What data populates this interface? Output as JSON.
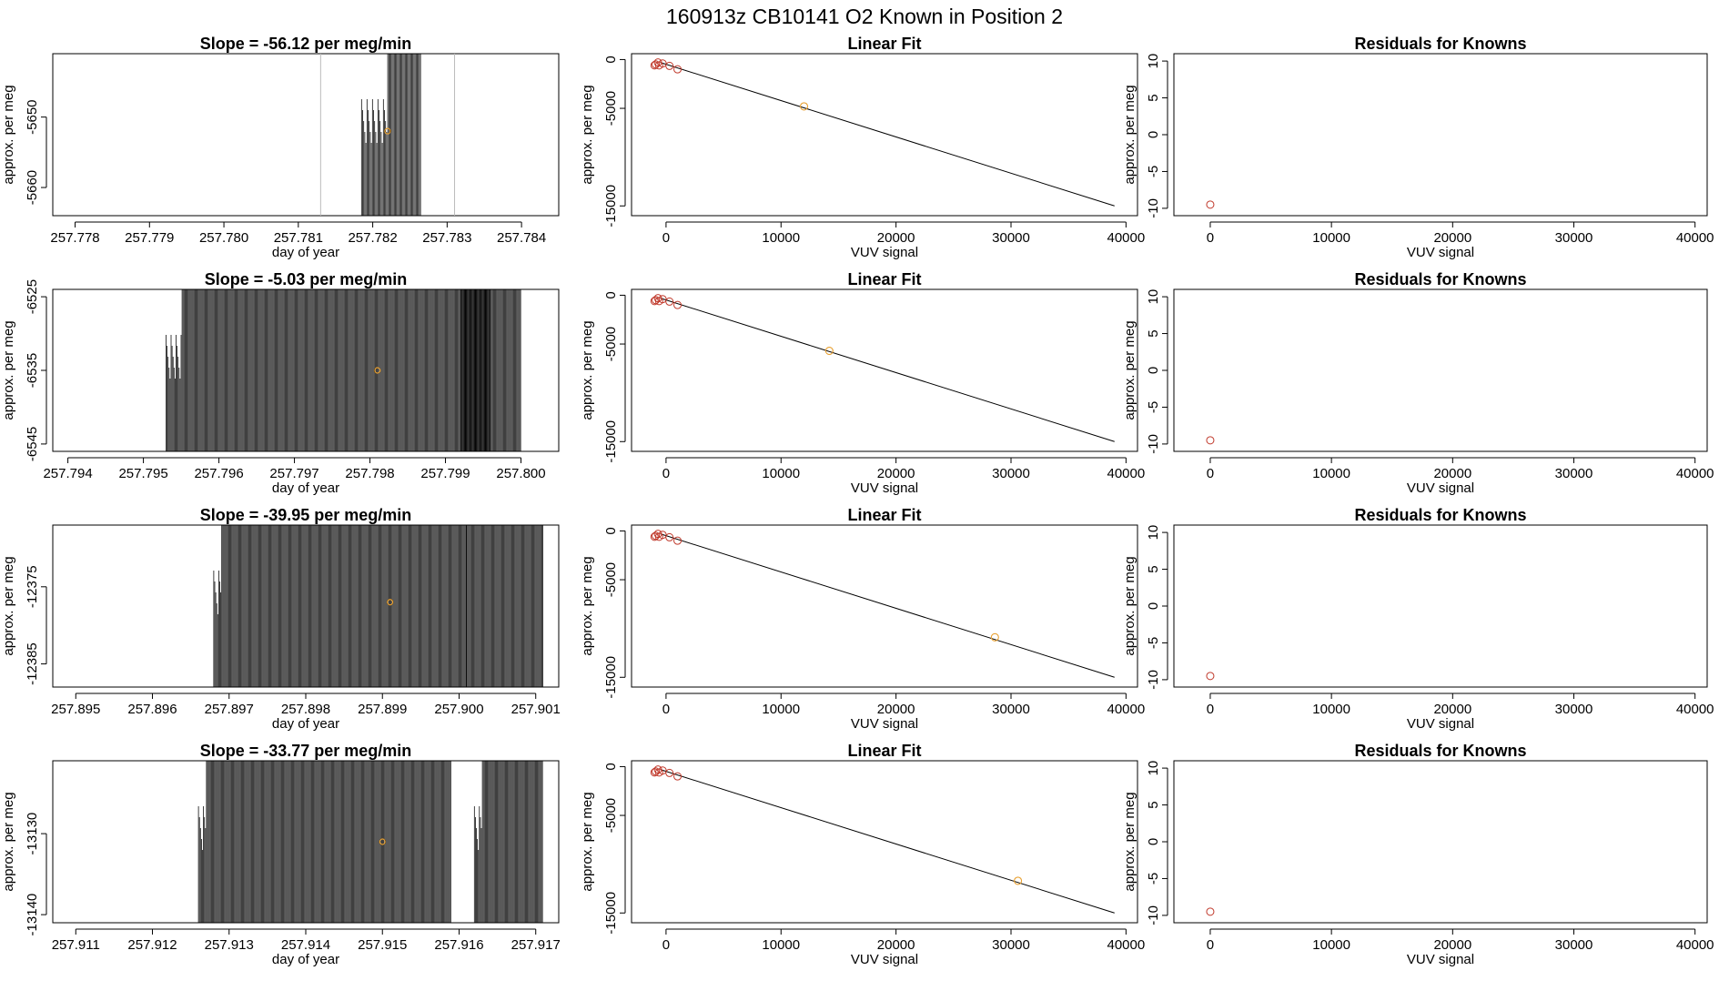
{
  "figure": {
    "title": "160913z      CB10141    O2 Known in Position  2"
  },
  "chart_data": [
    {
      "type": "line",
      "name": "raw-1",
      "title": "Slope =  -56.12  per meg/min",
      "xlabel": "day of year",
      "ylabel": "approx. per meg",
      "xlim": [
        257.7777,
        257.7845
      ],
      "ylim": [
        -5664,
        -5641
      ],
      "xticks": [
        "257.778",
        "257.779",
        "257.780",
        "257.781",
        "257.782",
        "257.783",
        "257.784"
      ],
      "yticks": [
        "-5650",
        "-5660"
      ],
      "marker_x": 257.7822,
      "marker_y": -5652,
      "window": [
        257.7813,
        257.7831
      ],
      "spans": [
        [
          257.78185,
          257.78265,
          257.7822,
          257.78265,
          1.2
        ]
      ]
    },
    {
      "type": "line",
      "name": "raw-2",
      "title": "Slope =  -5.03  per meg/min",
      "xlabel": "day of year",
      "ylabel": "approx. per meg",
      "xlim": [
        257.7938,
        257.8005
      ],
      "ylim": [
        -6546,
        -6524
      ],
      "xticks": [
        "257.794",
        "257.795",
        "257.796",
        "257.797",
        "257.798",
        "257.799",
        "257.800"
      ],
      "yticks": [
        "-6525",
        "-6535",
        "-6545"
      ],
      "marker_x": 257.7981,
      "marker_y": -6535,
      "spans": [
        [
          257.7953,
          257.7996,
          257.7955,
          257.7996,
          1.1
        ],
        [
          257.7992,
          257.8,
          257.7992,
          257.8,
          1.1
        ]
      ]
    },
    {
      "type": "line",
      "name": "raw-3",
      "title": "Slope =  -39.95  per meg/min",
      "xlabel": "day of year",
      "ylabel": "approx. per meg",
      "xlim": [
        257.8947,
        257.9013
      ],
      "ylim": [
        -12388,
        -12367
      ],
      "xticks": [
        "257.895",
        "257.896",
        "257.897",
        "257.898",
        "257.899",
        "257.900",
        "257.901"
      ],
      "yticks": [
        "-12375",
        "-12385"
      ],
      "marker_x": 257.8991,
      "marker_y": -12377,
      "spans": [
        [
          257.8968,
          257.9001,
          257.8969,
          257.9001,
          1.1
        ],
        [
          257.9001,
          257.9011,
          257.9001,
          257.9011,
          1.1
        ]
      ]
    },
    {
      "type": "line",
      "name": "raw-4",
      "title": "Slope =  -33.77  per meg/min",
      "xlabel": "day of year",
      "ylabel": "approx. per meg",
      "xlim": [
        257.9107,
        257.9173
      ],
      "ylim": [
        -13141,
        -13121
      ],
      "xticks": [
        "257.911",
        "257.912",
        "257.913",
        "257.914",
        "257.915",
        "257.916",
        "257.917"
      ],
      "yticks": [
        "-13130",
        "-13140"
      ],
      "marker_x": 257.915,
      "marker_y": -13131,
      "spans": [
        [
          257.9126,
          257.9159,
          257.9127,
          257.9159,
          1.1
        ],
        [
          257.9162,
          257.9171,
          257.9163,
          257.9171,
          1.1
        ]
      ]
    },
    {
      "type": "scatter",
      "name": "fit-1",
      "title": "Linear Fit",
      "xlabel": "VUV signal",
      "ylabel": "approx. per meg",
      "xlim": [
        -3000,
        41000
      ],
      "ylim": [
        -16000,
        600
      ],
      "xticks": [
        "0",
        "10000",
        "20000",
        "30000",
        "40000"
      ],
      "yticks": [
        "0",
        "-5000",
        "-15000"
      ],
      "line": [
        [
          -500,
          -300
        ],
        [
          39000,
          -15000
        ]
      ],
      "points": [
        [
          -700,
          -300
        ],
        [
          -300,
          -400
        ],
        [
          -600,
          -600
        ],
        [
          -900,
          -500
        ],
        [
          300,
          -650
        ],
        [
          1000,
          -1000
        ],
        [
          -1000,
          -600
        ]
      ],
      "unknown": [
        12000,
        -4800
      ]
    },
    {
      "type": "scatter",
      "name": "fit-2",
      "title": "Linear Fit",
      "xlabel": "VUV signal",
      "ylabel": "approx. per meg",
      "xlim": [
        -3000,
        41000
      ],
      "ylim": [
        -16000,
        600
      ],
      "xticks": [
        "0",
        "10000",
        "20000",
        "30000",
        "40000"
      ],
      "yticks": [
        "0",
        "-5000",
        "-15000"
      ],
      "line": [
        [
          -500,
          -300
        ],
        [
          39000,
          -15000
        ]
      ],
      "points": [
        [
          -700,
          -300
        ],
        [
          -300,
          -400
        ],
        [
          -600,
          -600
        ],
        [
          -900,
          -500
        ],
        [
          300,
          -650
        ],
        [
          1000,
          -1000
        ],
        [
          -1000,
          -600
        ]
      ],
      "unknown": [
        14200,
        -5700
      ]
    },
    {
      "type": "scatter",
      "name": "fit-3",
      "title": "Linear Fit",
      "xlabel": "VUV signal",
      "ylabel": "approx. per meg",
      "xlim": [
        -3000,
        41000
      ],
      "ylim": [
        -16000,
        600
      ],
      "xticks": [
        "0",
        "10000",
        "20000",
        "30000",
        "40000"
      ],
      "yticks": [
        "0",
        "-5000",
        "-15000"
      ],
      "line": [
        [
          -500,
          -300
        ],
        [
          39000,
          -15000
        ]
      ],
      "points": [
        [
          -700,
          -300
        ],
        [
          -300,
          -400
        ],
        [
          -600,
          -600
        ],
        [
          -900,
          -500
        ],
        [
          300,
          -650
        ],
        [
          1000,
          -1000
        ],
        [
          -1000,
          -600
        ]
      ],
      "unknown": [
        28600,
        -10900
      ]
    },
    {
      "type": "scatter",
      "name": "fit-4",
      "title": "Linear Fit",
      "xlabel": "VUV signal",
      "ylabel": "approx. per meg",
      "xlim": [
        -3000,
        41000
      ],
      "ylim": [
        -16000,
        600
      ],
      "xticks": [
        "0",
        "10000",
        "20000",
        "30000",
        "40000"
      ],
      "yticks": [
        "0",
        "-5000",
        "-15000"
      ],
      "line": [
        [
          -500,
          -300
        ],
        [
          39000,
          -15000
        ]
      ],
      "points": [
        [
          -700,
          -300
        ],
        [
          -300,
          -400
        ],
        [
          -600,
          -600
        ],
        [
          -900,
          -500
        ],
        [
          300,
          -650
        ],
        [
          1000,
          -1000
        ],
        [
          -1000,
          -600
        ]
      ],
      "unknown": [
        30600,
        -11700
      ]
    },
    {
      "type": "scatter",
      "name": "resid-1",
      "title": "Residuals for Knowns",
      "xlabel": "VUV signal",
      "ylabel": "approx. per meg",
      "xlim": [
        -3000,
        41000
      ],
      "ylim": [
        -11,
        11
      ],
      "xticks": [
        "0",
        "10000",
        "20000",
        "30000",
        "40000"
      ],
      "yticks": [
        "10",
        "5",
        "0",
        "-5",
        "-10"
      ],
      "points": [
        [
          0,
          -9.5
        ]
      ]
    },
    {
      "type": "scatter",
      "name": "resid-2",
      "title": "Residuals for Knowns",
      "xlabel": "VUV signal",
      "ylabel": "approx. per meg",
      "xlim": [
        -3000,
        41000
      ],
      "ylim": [
        -11,
        11
      ],
      "xticks": [
        "0",
        "10000",
        "20000",
        "30000",
        "40000"
      ],
      "yticks": [
        "10",
        "5",
        "0",
        "-5",
        "-10"
      ],
      "points": [
        [
          0,
          -9.5
        ]
      ]
    },
    {
      "type": "scatter",
      "name": "resid-3",
      "title": "Residuals for Knowns",
      "xlabel": "VUV signal",
      "ylabel": "approx. per meg",
      "xlim": [
        -3000,
        41000
      ],
      "ylim": [
        -11,
        11
      ],
      "xticks": [
        "0",
        "10000",
        "20000",
        "30000",
        "40000"
      ],
      "yticks": [
        "10",
        "5",
        "0",
        "-5",
        "-10"
      ],
      "points": [
        [
          0,
          -9.5
        ]
      ]
    },
    {
      "type": "scatter",
      "name": "resid-4",
      "title": "Residuals for Knowns",
      "xlabel": "VUV signal",
      "ylabel": "approx. per meg",
      "xlim": [
        -3000,
        41000
      ],
      "ylim": [
        -11,
        11
      ],
      "xticks": [
        "0",
        "10000",
        "20000",
        "30000",
        "40000"
      ],
      "yticks": [
        "10",
        "5",
        "0",
        "-5",
        "-10"
      ],
      "points": [
        [
          0,
          -9.5
        ]
      ]
    }
  ],
  "colors": {
    "axis": "#000000",
    "trace": "#000000",
    "window": "#bbbbbb",
    "fit_line": "#000000",
    "known_point": "#c0392b",
    "unknown_point": "#e8a030"
  }
}
